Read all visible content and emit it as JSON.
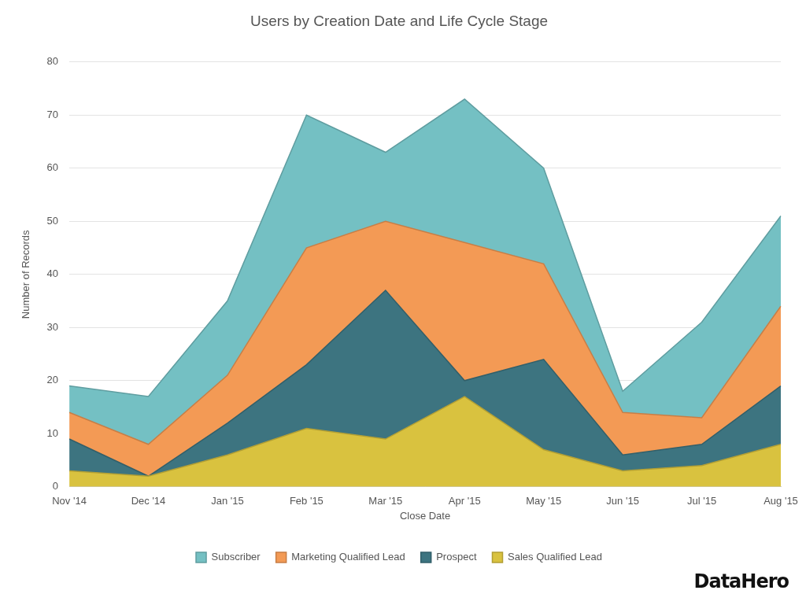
{
  "chart_data": {
    "type": "area",
    "title": "Users by Creation Date and Life Cycle Stage",
    "x_label": "Close Date",
    "y_label": "Number of Records",
    "annotation": "DataHero",
    "categories": [
      "Nov '14",
      "Dec '14",
      "Jan '15",
      "Feb '15",
      "Mar '15",
      "Apr '15",
      "May '15",
      "Jun '15",
      "Jul '15",
      "Aug '15"
    ],
    "series": [
      {
        "name": "Subscriber",
        "color": "#74c0c3",
        "values": [
          5,
          9,
          14,
          25,
          13,
          27,
          18,
          4,
          18,
          17
        ]
      },
      {
        "name": "Marketing Qualified Lead",
        "color": "#f39a55",
        "values": [
          5,
          6,
          9,
          22,
          13,
          26,
          18,
          8,
          5,
          15
        ]
      },
      {
        "name": "Prospect",
        "color": "#3d7480",
        "values": [
          6,
          0,
          6,
          12,
          28,
          3,
          17,
          3,
          4,
          11
        ]
      },
      {
        "name": "Sales Qualified Lead",
        "color": "#d9c23f",
        "values": [
          3,
          2,
          6,
          11,
          9,
          17,
          7,
          3,
          4,
          8
        ]
      }
    ],
    "stacked": true,
    "ylim": [
      0,
      80
    ],
    "yticks": [
      0,
      10,
      20,
      30,
      40,
      50,
      60,
      70,
      80
    ],
    "grid": true,
    "legend": "bottom"
  }
}
